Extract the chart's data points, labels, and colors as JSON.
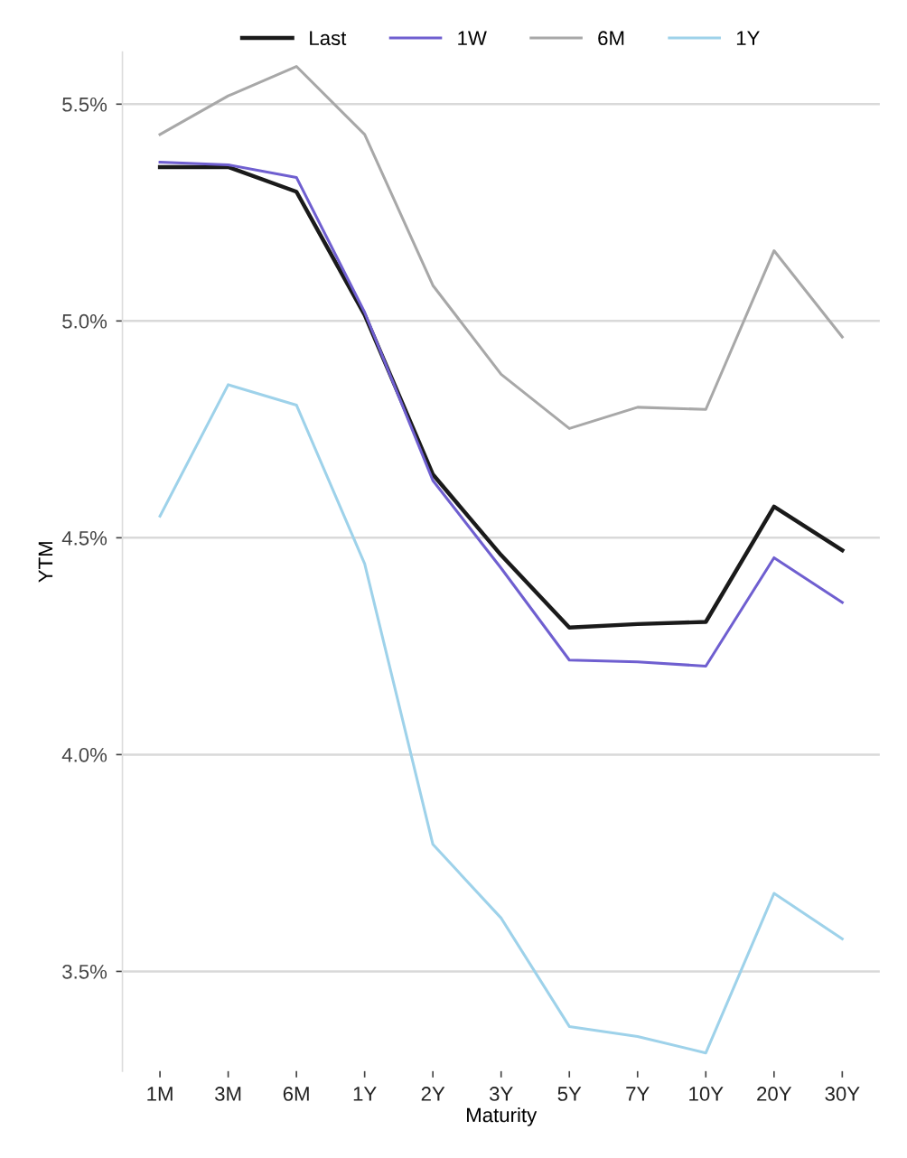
{
  "chart_data": {
    "type": "line",
    "xlabel": "Maturity",
    "ylabel": "YTM",
    "categories": [
      "1M",
      "3M",
      "6M",
      "1Y",
      "2Y",
      "3Y",
      "5Y",
      "7Y",
      "10Y",
      "20Y",
      "30Y"
    ],
    "series": [
      {
        "name": "Last",
        "color": "#1a1a1a",
        "values": [
          5.355,
          5.355,
          5.298,
          5.014,
          4.646,
          4.46,
          4.293,
          4.301,
          4.306,
          4.572,
          4.471
        ]
      },
      {
        "name": "1W",
        "color": "#6f5fd0",
        "values": [
          5.366,
          5.36,
          5.331,
          5.02,
          4.632,
          4.43,
          4.218,
          4.214,
          4.204,
          4.454,
          4.351
        ]
      },
      {
        "name": "6M",
        "color": "#a8a8a8",
        "values": [
          5.43,
          5.519,
          5.587,
          5.43,
          5.082,
          4.877,
          4.752,
          4.801,
          4.796,
          5.162,
          4.963
        ]
      },
      {
        "name": "1Y",
        "color": "#9ed2ea",
        "values": [
          4.55,
          4.853,
          4.806,
          4.44,
          3.793,
          3.623,
          3.373,
          3.35,
          3.312,
          3.68,
          3.575
        ]
      }
    ],
    "ylim": [
      3.27,
      5.62
    ],
    "yticks": [
      {
        "value": 3.5,
        "label": "3.5%"
      },
      {
        "value": 4.0,
        "label": "4.0%"
      },
      {
        "value": 4.5,
        "label": "4.5%"
      },
      {
        "value": 5.0,
        "label": "5.0%"
      },
      {
        "value": 5.5,
        "label": "5.5%"
      }
    ],
    "grid": "y",
    "legend": "top",
    "marker": "none",
    "line_style": "solid"
  }
}
